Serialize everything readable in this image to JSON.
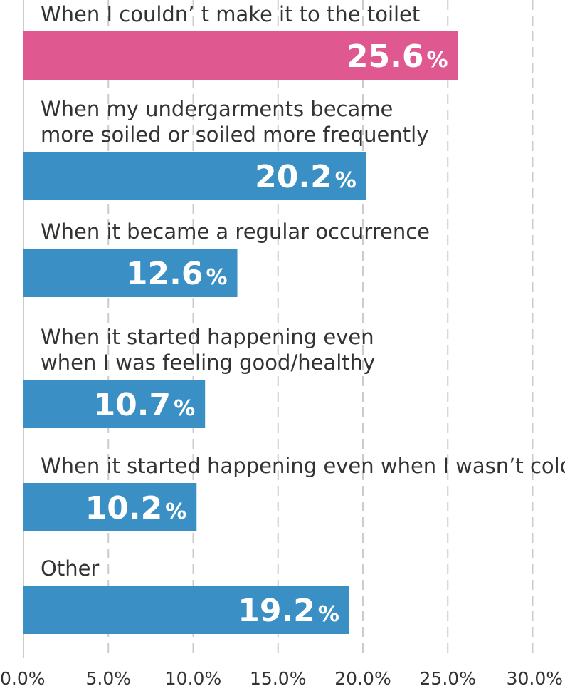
{
  "chart_data": {
    "type": "bar",
    "orientation": "horizontal",
    "categories": [
      [
        "When I couldn’ t make it to the toilet"
      ],
      [
        "When my undergarments became",
        "more soiled or soiled more frequently"
      ],
      [
        "When it became a regular occurrence"
      ],
      [
        "When it started happening even",
        "when I was feeling good/healthy"
      ],
      [
        "When it started happening even when I wasn’t cold"
      ],
      [
        "Other"
      ]
    ],
    "values": [
      25.6,
      20.2,
      12.6,
      10.7,
      10.2,
      19.2
    ],
    "value_labels": [
      "25.6",
      "20.2",
      "12.6",
      "10.7",
      "10.2",
      "19.2"
    ],
    "value_unit": "%",
    "colors": [
      "#e05890",
      "#3a8fc4",
      "#3a8fc4",
      "#3a8fc4",
      "#3a8fc4",
      "#3a8fc4"
    ],
    "xlim": [
      0,
      30
    ],
    "ticks": [
      0,
      5,
      10,
      15,
      20,
      25,
      30
    ],
    "tick_labels": [
      "0.0%",
      "5.0%",
      "10.0%",
      "15.0%",
      "20.0%",
      "25.0%",
      "30.0%"
    ],
    "grid": "vertical-dashed",
    "title": "",
    "xlabel": "",
    "ylabel": ""
  }
}
